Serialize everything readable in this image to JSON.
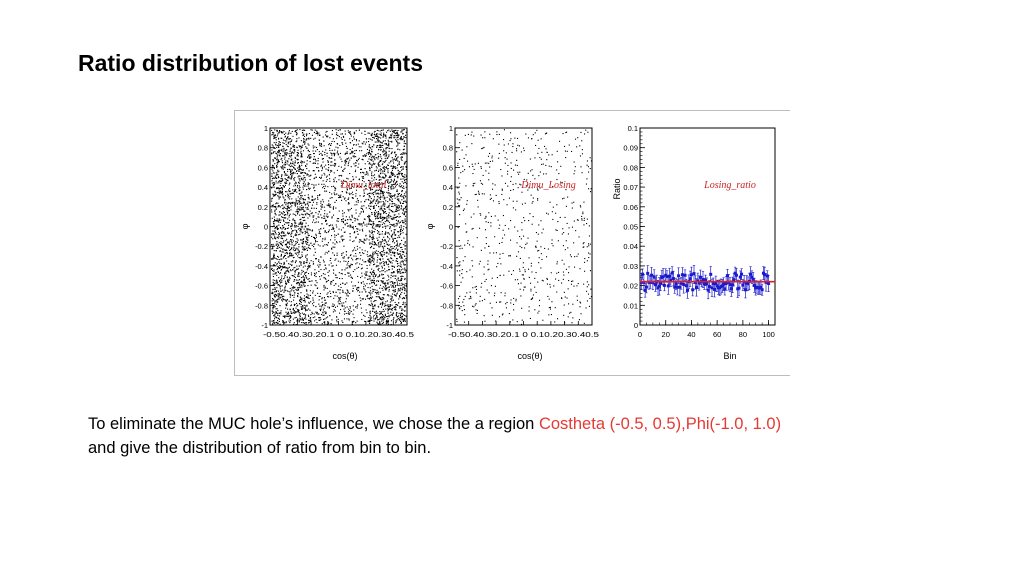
{
  "slide": {
    "title": "Ratio distribution of lost events"
  },
  "caption": {
    "part1": "To eliminate the MUC hole’s influence, we chose the a region ",
    "highlight": "Costheta (-0.5, 0.5),Phi(-1.0, 1.0)",
    "part2": "and give the distribution of  ratio from bin to bin.",
    "highlight_color": "#e53935"
  },
  "chart_data": [
    {
      "type": "scatter",
      "title": "Dimu_total",
      "xlabel": "cos(θ)",
      "ylabel": "φ",
      "xlim": [
        -0.5,
        0.5
      ],
      "ylim": [
        -1,
        1
      ],
      "x_ticks": [
        "-0.5",
        "0.4",
        "0.3",
        "0.2",
        "0.1",
        "0",
        "0.1",
        "0.2",
        "0.3",
        "0.4",
        "0.5"
      ],
      "y_ticks": [
        "1",
        "0.8",
        "0.6",
        "0.4",
        "0.2",
        "0",
        "-0.2",
        "-0.4",
        "-0.6",
        "-0.8",
        "-1"
      ],
      "density": "high"
    },
    {
      "type": "scatter",
      "title": "Dimu_Losing",
      "xlabel": "cos(θ)",
      "ylabel": "φ",
      "xlim": [
        -0.5,
        0.5
      ],
      "ylim": [
        -1,
        1
      ],
      "x_ticks": [
        "-0.5",
        "0.4",
        "0.3",
        "0.2",
        "0.1",
        "0",
        "0.1",
        "0.2",
        "0.3",
        "0.4",
        "0.5"
      ],
      "y_ticks": [
        "1",
        "0.8",
        "0.6",
        "0.4",
        "0.2",
        "0",
        "-0.2",
        "-0.4",
        "-0.6",
        "-0.8",
        "-1"
      ],
      "density": "low"
    },
    {
      "type": "scatter",
      "title": "Losing_ratio",
      "xlabel": "Bin",
      "ylabel": "Ratio",
      "xlim": [
        0,
        105
      ],
      "ylim": [
        0,
        0.1
      ],
      "x_ticks": [
        "0",
        "20",
        "40",
        "60",
        "80",
        "100"
      ],
      "y_ticks": [
        "0.1",
        "0.09",
        "0.08",
        "0.07",
        "0.06",
        "0.05",
        "0.04",
        "0.03",
        "0.02",
        "0.01",
        "0"
      ],
      "fit_value": 0.022,
      "marker_color": "#1a1acc",
      "fit_color": "#e02020"
    }
  ]
}
